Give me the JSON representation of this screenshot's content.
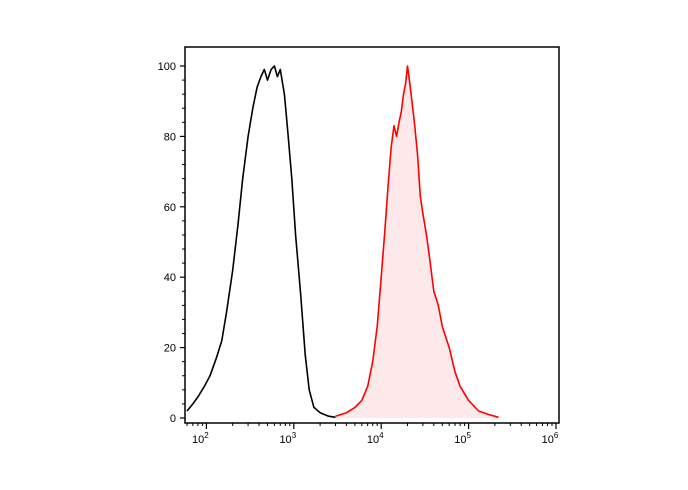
{
  "chart_data": {
    "type": "area",
    "title": "",
    "xlabel": "",
    "ylabel": "",
    "x_scale": "log",
    "xlim": [
      60,
      1000000
    ],
    "ylim": [
      0,
      100
    ],
    "x_ticks": [
      {
        "base": "10",
        "exp": "2",
        "value": 100
      },
      {
        "base": "10",
        "exp": "3",
        "value": 1000
      },
      {
        "base": "10",
        "exp": "4",
        "value": 10000
      },
      {
        "base": "10",
        "exp": "5",
        "value": 100000
      },
      {
        "base": "10",
        "exp": "6",
        "value": 1000000
      }
    ],
    "y_ticks": [
      "0",
      "20",
      "40",
      "60",
      "80",
      "100"
    ],
    "grid": false,
    "series": [
      {
        "color": "#000000",
        "filled": false,
        "points": [
          [
            60,
            2
          ],
          [
            70,
            4
          ],
          [
            80,
            6
          ],
          [
            95,
            9
          ],
          [
            110,
            12
          ],
          [
            130,
            17
          ],
          [
            150,
            22
          ],
          [
            170,
            30
          ],
          [
            200,
            42
          ],
          [
            230,
            55
          ],
          [
            260,
            68
          ],
          [
            300,
            80
          ],
          [
            340,
            88
          ],
          [
            380,
            94
          ],
          [
            420,
            97
          ],
          [
            460,
            99
          ],
          [
            500,
            96
          ],
          [
            550,
            99
          ],
          [
            600,
            100
          ],
          [
            650,
            97
          ],
          [
            700,
            99
          ],
          [
            780,
            92
          ],
          [
            850,
            82
          ],
          [
            950,
            68
          ],
          [
            1050,
            52
          ],
          [
            1200,
            35
          ],
          [
            1350,
            18
          ],
          [
            1500,
            8
          ],
          [
            1700,
            3
          ],
          [
            2000,
            1.5
          ],
          [
            2500,
            0.5
          ],
          [
            3000,
            0.2
          ]
        ]
      },
      {
        "color": "#ff0000",
        "fill": "#fde8ea",
        "filled": true,
        "points": [
          [
            3000,
            0.5
          ],
          [
            4000,
            1.5
          ],
          [
            5000,
            3
          ],
          [
            6000,
            5
          ],
          [
            7000,
            9
          ],
          [
            8000,
            16
          ],
          [
            9000,
            26
          ],
          [
            10000,
            40
          ],
          [
            11000,
            53
          ],
          [
            12000,
            66
          ],
          [
            13000,
            77
          ],
          [
            14000,
            83
          ],
          [
            15000,
            80
          ],
          [
            16000,
            84
          ],
          [
            17000,
            87
          ],
          [
            18000,
            92
          ],
          [
            19000,
            95
          ],
          [
            20000,
            100
          ],
          [
            21000,
            96
          ],
          [
            22000,
            92
          ],
          [
            24000,
            84
          ],
          [
            26000,
            75
          ],
          [
            28000,
            63
          ],
          [
            30000,
            58
          ],
          [
            33000,
            52
          ],
          [
            36000,
            45
          ],
          [
            40000,
            36
          ],
          [
            45000,
            32
          ],
          [
            50000,
            26
          ],
          [
            60000,
            20
          ],
          [
            70000,
            13
          ],
          [
            80000,
            9
          ],
          [
            100000,
            5
          ],
          [
            130000,
            2
          ],
          [
            170000,
            1
          ],
          [
            220000,
            0.2
          ]
        ]
      }
    ]
  }
}
